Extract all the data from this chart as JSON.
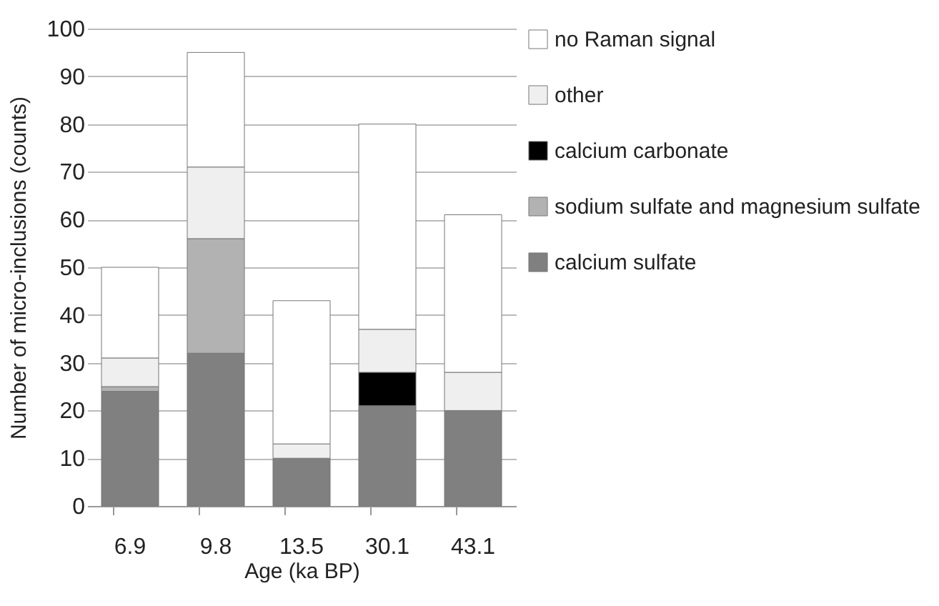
{
  "chart_data": {
    "type": "bar",
    "stacked": true,
    "xlabel": "Age (ka BP)",
    "ylabel": "Number of micro-inclusions (counts)",
    "categories": [
      "6.9",
      "9.8",
      "13.5",
      "30.1",
      "43.1"
    ],
    "series": [
      {
        "name": "calcium sulfate",
        "color": "#808080",
        "values": [
          24,
          32,
          10,
          21,
          20
        ]
      },
      {
        "name": "sodium sulfate and magnesium sulfate",
        "color": "#b2b2b2",
        "values": [
          1,
          24,
          null,
          null,
          null
        ]
      },
      {
        "name": "calcium carbonate",
        "color": "#000000",
        "values": [
          null,
          null,
          null,
          7,
          null
        ]
      },
      {
        "name": "other",
        "color": "#efefef",
        "values": [
          6,
          15,
          3,
          9,
          8
        ]
      },
      {
        "name": "no Raman signal",
        "color": "#ffffff",
        "values": [
          19,
          24,
          30,
          43,
          33
        ]
      }
    ],
    "ylim": [
      0,
      100
    ],
    "yticks": [
      0,
      10,
      20,
      30,
      40,
      50,
      60,
      70,
      80,
      90,
      100
    ],
    "grid": "y",
    "legend": "right"
  }
}
